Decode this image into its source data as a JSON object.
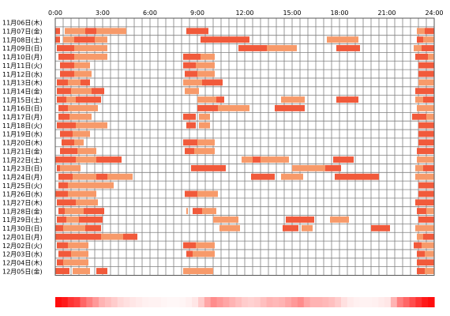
{
  "chart_data": {
    "type": "timeline",
    "x_unit": "hour",
    "xlim": [
      0,
      24
    ],
    "x_ticks": [
      "0:00",
      "3:00",
      "6:00",
      "9:00",
      "12:00",
      "15:00",
      "18:00",
      "21:00",
      "24:00"
    ],
    "colors": {
      "bar_dark": "#f15a3b",
      "bar_light": "#f79a6a",
      "grid": "#808080",
      "frame": "#555555",
      "heat_max": "#ff0000",
      "heat_min": "#ffffff"
    },
    "days": [
      {
        "label": "11月06日(木)",
        "segments": []
      },
      {
        "label": "11月07日(金)",
        "segments": [
          [
            0.0,
            0.3
          ],
          [
            0.6,
            1.9
          ],
          [
            1.9,
            2.6
          ],
          [
            2.6,
            4.5
          ],
          [
            8.3,
            9.7
          ],
          [
            22.9,
            23.4
          ],
          [
            23.4,
            24.0
          ]
        ]
      },
      {
        "label": "11月08日(土)",
        "segments": [
          [
            0.0,
            0.3
          ],
          [
            0.5,
            1.2
          ],
          [
            1.2,
            2.5
          ],
          [
            2.5,
            3.3
          ],
          [
            9.2,
            12.3
          ],
          [
            17.2,
            19.2
          ],
          [
            22.9,
            23.3
          ],
          [
            23.3,
            24.0
          ]
        ]
      },
      {
        "label": "11月09日(日)",
        "segments": [
          [
            0.1,
            1.2
          ],
          [
            1.2,
            3.3
          ],
          [
            11.6,
            13.4
          ],
          [
            13.4,
            15.3
          ],
          [
            17.8,
            19.3
          ],
          [
            22.7,
            23.2
          ],
          [
            23.2,
            24.0
          ]
        ]
      },
      {
        "label": "11月10日(月)",
        "segments": [
          [
            0.2,
            1.2
          ],
          [
            1.2,
            3.3
          ],
          [
            8.1,
            9.2
          ],
          [
            9.2,
            10.1
          ],
          [
            22.8,
            23.6
          ],
          [
            23.6,
            24.0
          ]
        ]
      },
      {
        "label": "11月11日(火)",
        "segments": [
          [
            0.3,
            1.2
          ],
          [
            1.2,
            2.2
          ],
          [
            8.1,
            8.9
          ],
          [
            8.9,
            10.1
          ],
          [
            23.0,
            24.0
          ]
        ]
      },
      {
        "label": "11月12日(水)",
        "segments": [
          [
            0.3,
            1.2
          ],
          [
            1.2,
            2.3
          ],
          [
            8.2,
            9.0
          ],
          [
            9.0,
            10.1
          ],
          [
            23.0,
            24.0
          ]
        ]
      },
      {
        "label": "11月13日(木)",
        "segments": [
          [
            0.1,
            0.8
          ],
          [
            0.8,
            1.6
          ],
          [
            1.6,
            2.2
          ],
          [
            8.1,
            9.3
          ],
          [
            9.3,
            10.6
          ],
          [
            23.0,
            24.0
          ]
        ]
      },
      {
        "label": "11月14日(金)",
        "segments": [
          [
            0.1,
            1.0
          ],
          [
            1.0,
            2.3
          ],
          [
            2.3,
            3.1
          ],
          [
            8.2,
            9.1
          ],
          [
            22.8,
            24.0
          ]
        ]
      },
      {
        "label": "11月15日(土)",
        "segments": [
          [
            0.1,
            0.7
          ],
          [
            0.7,
            1.3
          ],
          [
            1.3,
            2.9
          ],
          [
            9.0,
            10.2
          ],
          [
            10.2,
            10.7
          ],
          [
            14.3,
            15.8
          ],
          [
            17.8,
            19.2
          ],
          [
            22.8,
            23.3
          ],
          [
            23.3,
            24.0
          ]
        ]
      },
      {
        "label": "11月16日(日)",
        "segments": [
          [
            0.2,
            0.8
          ],
          [
            0.8,
            2.7
          ],
          [
            9.0,
            10.3
          ],
          [
            10.3,
            12.3
          ],
          [
            13.9,
            15.8
          ],
          [
            22.9,
            24.0
          ]
        ]
      },
      {
        "label": "11月17日(月)",
        "segments": [
          [
            0.2,
            0.9
          ],
          [
            0.9,
            2.3
          ],
          [
            8.1,
            8.9
          ],
          [
            9.1,
            9.8
          ],
          [
            22.6,
            23.5
          ],
          [
            23.5,
            24.0
          ]
        ]
      },
      {
        "label": "11月18日(火)",
        "segments": [
          [
            0.1,
            1.3
          ],
          [
            1.3,
            3.3
          ],
          [
            8.3,
            8.9
          ],
          [
            9.1,
            9.8
          ],
          [
            23.0,
            24.0
          ]
        ]
      },
      {
        "label": "11月19日(水)",
        "segments": [
          [
            0.3,
            1.1
          ],
          [
            1.1,
            2.2
          ],
          [
            23.0,
            24.0
          ]
        ]
      },
      {
        "label": "11月20日(木)",
        "segments": [
          [
            0.4,
            1.2
          ],
          [
            1.2,
            1.8
          ],
          [
            8.1,
            9.0
          ],
          [
            9.0,
            10.1
          ],
          [
            23.0,
            24.0
          ]
        ]
      },
      {
        "label": "11月21日(金)",
        "segments": [
          [
            0.3,
            1.4
          ],
          [
            1.4,
            2.6
          ],
          [
            8.2,
            8.8
          ],
          [
            8.8,
            10.1
          ],
          [
            22.9,
            24.0
          ]
        ]
      },
      {
        "label": "11月22日(土)",
        "segments": [
          [
            0.0,
            1.3
          ],
          [
            1.3,
            2.6
          ],
          [
            2.6,
            4.2
          ],
          [
            11.8,
            12.5
          ],
          [
            12.5,
            13.0
          ],
          [
            13.0,
            14.8
          ],
          [
            17.6,
            18.9
          ],
          [
            22.9,
            24.0
          ]
        ]
      },
      {
        "label": "11月23日(日)",
        "segments": [
          [
            0.1,
            0.3
          ],
          [
            0.3,
            1.6
          ],
          [
            8.6,
            10.8
          ],
          [
            15.0,
            17.1
          ],
          [
            17.1,
            18.1
          ],
          [
            22.8,
            23.3
          ],
          [
            23.3,
            24.0
          ]
        ]
      },
      {
        "label": "11月24日(月)",
        "segments": [
          [
            0.2,
            1.1
          ],
          [
            1.1,
            2.6
          ],
          [
            2.6,
            3.3
          ],
          [
            3.3,
            4.9
          ],
          [
            12.4,
            13.9
          ],
          [
            14.3,
            15.7
          ],
          [
            17.7,
            20.5
          ],
          [
            22.8,
            24.0
          ]
        ]
      },
      {
        "label": "11月25日(火)",
        "segments": [
          [
            0.2,
            0.8
          ],
          [
            0.8,
            3.7
          ],
          [
            23.0,
            24.0
          ]
        ]
      },
      {
        "label": "11月26日(水)",
        "segments": [
          [
            0.0,
            0.8
          ],
          [
            0.8,
            2.6
          ],
          [
            8.2,
            9.0
          ],
          [
            9.0,
            10.3
          ],
          [
            23.0,
            24.0
          ]
        ]
      },
      {
        "label": "11月27日(木)",
        "segments": [
          [
            0.1,
            1.3
          ],
          [
            1.3,
            2.7
          ],
          [
            22.8,
            24.0
          ]
        ]
      },
      {
        "label": "11月28日(金)",
        "segments": [
          [
            0.2,
            0.6
          ],
          [
            0.6,
            1.8
          ],
          [
            1.8,
            3.1
          ],
          [
            8.3,
            8.4
          ],
          [
            8.7,
            9.3
          ],
          [
            9.3,
            10.2
          ],
          [
            22.9,
            23.5
          ],
          [
            23.5,
            24.0
          ]
        ]
      },
      {
        "label": "11月29日(土)",
        "segments": [
          [
            0.1,
            0.7
          ],
          [
            0.7,
            1.5
          ],
          [
            1.5,
            3.0
          ],
          [
            10.0,
            11.6
          ],
          [
            14.6,
            16.4
          ],
          [
            17.4,
            18.6
          ],
          [
            23.0,
            24.0
          ]
        ]
      },
      {
        "label": "11月30日(日)",
        "segments": [
          [
            0.0,
            0.5
          ],
          [
            0.5,
            1.9
          ],
          [
            1.9,
            2.9
          ],
          [
            10.4,
            11.7
          ],
          [
            14.4,
            15.4
          ],
          [
            15.6,
            16.3
          ],
          [
            20.0,
            21.2
          ],
          [
            22.8,
            24.0
          ]
        ]
      },
      {
        "label": "12月01日(月)",
        "segments": [
          [
            0.0,
            2.9
          ],
          [
            2.9,
            4.3
          ],
          [
            4.3,
            5.2
          ],
          [
            22.9,
            23.3
          ],
          [
            23.3,
            24.0
          ]
        ]
      },
      {
        "label": "12月02日(火)",
        "segments": [
          [
            0.1,
            0.8
          ],
          [
            0.8,
            2.1
          ],
          [
            8.1,
            8.9
          ],
          [
            8.9,
            10.1
          ],
          [
            22.7,
            23.2
          ],
          [
            23.2,
            24.0
          ]
        ]
      },
      {
        "label": "12月03日(水)",
        "segments": [
          [
            0.2,
            1.0
          ],
          [
            1.0,
            2.1
          ],
          [
            8.3,
            8.7
          ],
          [
            8.7,
            10.1
          ],
          [
            22.9,
            23.4
          ],
          [
            23.4,
            24.0
          ]
        ]
      },
      {
        "label": "12月04日(木)",
        "segments": [
          [
            0.1,
            0.5
          ],
          [
            0.5,
            2.1
          ],
          [
            22.9,
            24.0
          ]
        ]
      },
      {
        "label": "12月05日(金)",
        "segments": [
          [
            0.0,
            0.9
          ],
          [
            1.1,
            2.2
          ],
          [
            2.6,
            3.3
          ],
          [
            8.1,
            10.0
          ],
          [
            22.9,
            23.4
          ],
          [
            23.4,
            24.0
          ]
        ]
      }
    ],
    "heat_strip": [
      0.95,
      0.9,
      0.8,
      0.75,
      0.6,
      0.5,
      0.4,
      0.3,
      0.25,
      0.2,
      0.15,
      0.12,
      0.1,
      0.08,
      0.06,
      0.05,
      0.05,
      0.04,
      0.03,
      0.03,
      0.04,
      0.06,
      0.1,
      0.2,
      0.35,
      0.45,
      0.4,
      0.35,
      0.3,
      0.25,
      0.2,
      0.18,
      0.2,
      0.25,
      0.3,
      0.28,
      0.3,
      0.35,
      0.4,
      0.45,
      0.35,
      0.3,
      0.3,
      0.28,
      0.25,
      0.2,
      0.12,
      0.08,
      0.06,
      0.05,
      0.05,
      0.06,
      0.08,
      0.1,
      0.3,
      0.5,
      0.6,
      0.7,
      0.8,
      0.9,
      0.95
    ]
  }
}
